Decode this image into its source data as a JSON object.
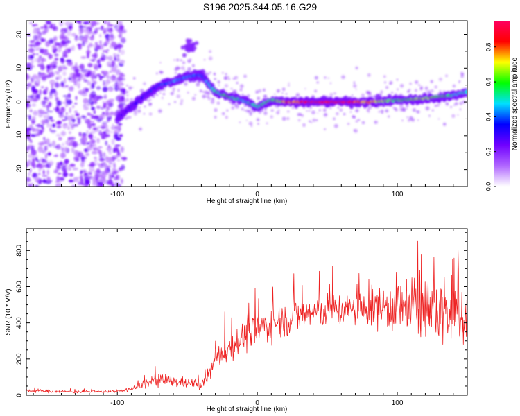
{
  "title": "S196.2025.344.05.16.G29",
  "chart_data": [
    {
      "type": "heatmap",
      "id": "spectrogram",
      "xlabel": "Height of straight line (km)",
      "ylabel": "Frequency (Hz)",
      "xlim": [
        -165,
        150
      ],
      "ylim": [
        -25,
        24
      ],
      "xticks": [
        -100,
        0,
        100
      ],
      "yticks": [
        -20,
        -10,
        0,
        10,
        20
      ],
      "colorbar": {
        "label": "Normalized spectral amplitude",
        "range": [
          0,
          0.95
        ],
        "ticks": [
          "0.0",
          "0.2",
          "0.4",
          "0.6",
          "0.8"
        ],
        "tick_values": [
          0.0,
          0.2,
          0.4,
          0.6,
          0.8
        ],
        "colormap": [
          "#ffffff",
          "#b066ff",
          "#7000ff",
          "#0000ff",
          "#00e0ff",
          "#00ff00",
          "#ffff00",
          "#ff0000",
          "#ff0060"
        ]
      },
      "ridge": {
        "x": [
          -100,
          -90,
          -80,
          -70,
          -60,
          -50,
          -40,
          -30,
          -20,
          -10,
          0,
          10,
          20,
          40,
          60,
          80,
          100,
          120,
          140,
          150
        ],
        "freq": [
          -5,
          -1.5,
          2,
          5,
          6,
          7.5,
          8,
          3,
          1.5,
          0.5,
          -1.5,
          0.5,
          0,
          0,
          0,
          0,
          0.5,
          1,
          2,
          3
        ],
        "amplitude": [
          0.25,
          0.3,
          0.35,
          0.4,
          0.45,
          0.45,
          0.4,
          0.55,
          0.6,
          0.5,
          0.55,
          0.6,
          0.8,
          0.95,
          0.95,
          0.8,
          0.6,
          0.7,
          0.55,
          0.5
        ]
      },
      "noise_region": {
        "x_range": [
          -165,
          -95
        ],
        "freq_range": [
          -25,
          24
        ],
        "amplitude": 0.15
      }
    },
    {
      "type": "line",
      "id": "snr",
      "xlabel": "Height of straight line (km)",
      "ylabel": "SNR (10 * V/V)",
      "xlim": [
        -165,
        150
      ],
      "ylim": [
        0,
        920
      ],
      "xticks": [
        -100,
        0,
        100
      ],
      "yticks": [
        0,
        200,
        400,
        600,
        800
      ],
      "color": "#ee2222",
      "series": [
        {
          "name": "SNR",
          "x": [
            -165,
            -150,
            -130,
            -110,
            -95,
            -85,
            -75,
            -65,
            -55,
            -45,
            -40,
            -35,
            -30,
            -25,
            -20,
            -15,
            -10,
            -5,
            0,
            10,
            20,
            30,
            40,
            50,
            60,
            70,
            80,
            90,
            100,
            110,
            120,
            130,
            140,
            150
          ],
          "mean": [
            25,
            22,
            18,
            20,
            25,
            45,
            80,
            80,
            70,
            65,
            50,
            110,
            200,
            230,
            260,
            300,
            320,
            340,
            360,
            400,
            420,
            440,
            460,
            470,
            470,
            470,
            480,
            490,
            490,
            480,
            480,
            470,
            450,
            450
          ],
          "spread": [
            10,
            10,
            8,
            8,
            10,
            20,
            40,
            40,
            35,
            30,
            30,
            45,
            70,
            80,
            90,
            100,
            100,
            100,
            110,
            110,
            110,
            110,
            110,
            110,
            110,
            110,
            120,
            150,
            180,
            190,
            200,
            220,
            240,
            240
          ]
        }
      ]
    }
  ]
}
